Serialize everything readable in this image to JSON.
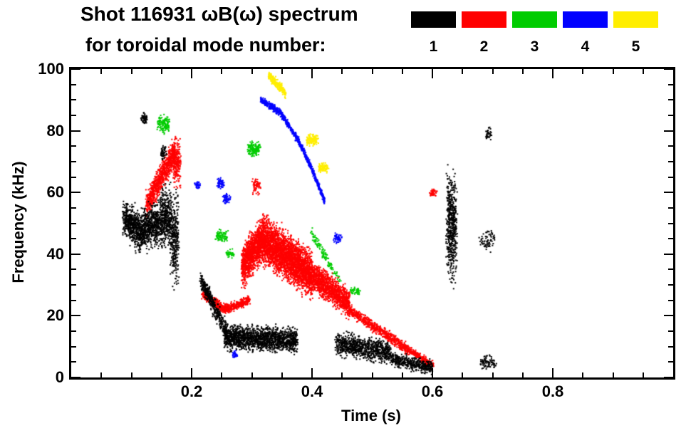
{
  "chart_data": {
    "type": "scatter",
    "title": "Shot 116931 ωB(ω) spectrum",
    "subtitle": "for toroidal mode number:",
    "xlabel": "Time (s)",
    "ylabel": "Frequency (kHz)",
    "xlim": [
      0,
      1.0
    ],
    "ylim": [
      0,
      100
    ],
    "grid": false,
    "legend_position": "top-right",
    "xticks": [
      {
        "v": 0.2,
        "label": "0.2"
      },
      {
        "v": 0.4,
        "label": "0.4"
      },
      {
        "v": 0.6,
        "label": "0.6"
      },
      {
        "v": 0.8,
        "label": "0.8"
      }
    ],
    "yticks": [
      {
        "v": 0,
        "label": "0"
      },
      {
        "v": 20,
        "label": "20"
      },
      {
        "v": 40,
        "label": "40"
      },
      {
        "v": 60,
        "label": "60"
      },
      {
        "v": 80,
        "label": "80"
      },
      {
        "v": 100,
        "label": "100"
      }
    ],
    "x_minor_step": 0.05,
    "y_minor_step": 5,
    "legend": [
      {
        "label": "1",
        "color": "#000000"
      },
      {
        "label": "2",
        "color": "#ff0000"
      },
      {
        "label": "3",
        "color": "#00cc00"
      },
      {
        "label": "4",
        "color": "#0000ff"
      },
      {
        "label": "5",
        "color": "#ffee00"
      }
    ],
    "cluster_fields": [
      "t_start_s",
      "t_end_s",
      "f_start_khz",
      "f_end_khz",
      "f_halfwidth_khz",
      "t_jitter_s",
      "n_points"
    ],
    "series": [
      {
        "name": "toroidal mode n=1",
        "color": "#000000",
        "clusters": [
          [
            0.088,
            0.118,
            52,
            46,
            8,
            0.004,
            650
          ],
          [
            0.118,
            0.148,
            48,
            50,
            9,
            0.004,
            550
          ],
          [
            0.148,
            0.166,
            52,
            52,
            13,
            0.003,
            400
          ],
          [
            0.166,
            0.178,
            45,
            45,
            21,
            0.002,
            300
          ],
          [
            0.215,
            0.26,
            32,
            14,
            4,
            0.002,
            450
          ],
          [
            0.255,
            0.375,
            13,
            12,
            5.5,
            0.002,
            1600
          ],
          [
            0.44,
            0.53,
            11,
            8,
            5,
            0.002,
            900
          ],
          [
            0.53,
            0.6,
            6,
            3,
            3,
            0.002,
            450
          ],
          [
            0.625,
            0.639,
            50,
            50,
            23,
            0.003,
            550
          ],
          [
            0.68,
            0.702,
            45,
            45,
            5,
            0.003,
            70
          ],
          [
            0.68,
            0.705,
            5,
            5,
            3,
            0.003,
            90
          ],
          [
            0.15,
            0.157,
            73,
            73,
            3,
            0.002,
            45
          ],
          [
            0.117,
            0.126,
            84,
            84,
            2.5,
            0.002,
            55
          ],
          [
            0.688,
            0.698,
            79,
            79,
            3,
            0.002,
            35
          ]
        ]
      },
      {
        "name": "toroidal mode n=2",
        "color": "#ff0000",
        "clusters": [
          [
            0.125,
            0.172,
            56,
            73,
            6,
            0.002,
            900
          ],
          [
            0.17,
            0.181,
            70,
            70,
            11,
            0.002,
            220
          ],
          [
            0.218,
            0.256,
            27,
            22,
            2,
            0.002,
            350
          ],
          [
            0.256,
            0.296,
            22,
            25,
            2,
            0.002,
            300
          ],
          [
            0.284,
            0.318,
            36,
            45,
            9,
            0.002,
            1300
          ],
          [
            0.318,
            0.4,
            45,
            33,
            10,
            0.002,
            3200
          ],
          [
            0.4,
            0.462,
            33,
            24,
            6,
            0.002,
            1300
          ],
          [
            0.462,
            0.56,
            22,
            9,
            2.5,
            0.002,
            650
          ],
          [
            0.56,
            0.601,
            9,
            4,
            1.5,
            0.002,
            260
          ],
          [
            0.597,
            0.607,
            60,
            60,
            1.5,
            0.002,
            45
          ],
          [
            0.301,
            0.313,
            62,
            62,
            3.5,
            0.002,
            70
          ]
        ]
      },
      {
        "name": "toroidal mode n=3",
        "color": "#00cc00",
        "clusters": [
          [
            0.144,
            0.163,
            82,
            82,
            4,
            0.002,
            130
          ],
          [
            0.294,
            0.313,
            74,
            74,
            3.5,
            0.002,
            160
          ],
          [
            0.241,
            0.259,
            46,
            46,
            3.5,
            0.002,
            90
          ],
          [
            0.259,
            0.27,
            40,
            40,
            2,
            0.002,
            45
          ],
          [
            0.398,
            0.447,
            47,
            31,
            2.5,
            0.002,
            130
          ],
          [
            0.464,
            0.479,
            28,
            28,
            1.5,
            0.002,
            55
          ]
        ]
      },
      {
        "name": "toroidal mode n=4",
        "color": "#0000ff",
        "clusters": [
          [
            0.315,
            0.347,
            90,
            86,
            1.5,
            0.001,
            220
          ],
          [
            0.347,
            0.377,
            86,
            77,
            1.5,
            0.001,
            220
          ],
          [
            0.377,
            0.401,
            77,
            67,
            1.5,
            0.001,
            200
          ],
          [
            0.401,
            0.421,
            67,
            57,
            1.5,
            0.001,
            190
          ],
          [
            0.243,
            0.253,
            63,
            63,
            2.5,
            0.002,
            60
          ],
          [
            0.253,
            0.263,
            58,
            58,
            2.5,
            0.002,
            55
          ],
          [
            0.268,
            0.275,
            7.5,
            7.5,
            1.5,
            0.002,
            35
          ],
          [
            0.437,
            0.448,
            45,
            45,
            2,
            0.002,
            55
          ],
          [
            0.206,
            0.214,
            62.5,
            62.5,
            2,
            0.002,
            35
          ]
        ]
      },
      {
        "name": "toroidal mode n=5",
        "color": "#ffee00",
        "clusters": [
          [
            0.328,
            0.357,
            98,
            92,
            2,
            0.001,
            260
          ],
          [
            0.392,
            0.409,
            77,
            77,
            2.5,
            0.002,
            130
          ],
          [
            0.412,
            0.426,
            68,
            68,
            2,
            0.002,
            100
          ]
        ]
      }
    ]
  }
}
